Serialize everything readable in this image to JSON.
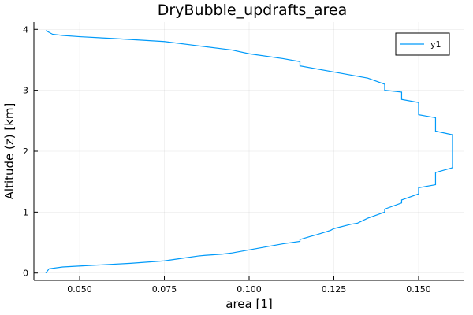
{
  "chart_data": {
    "type": "line",
    "title": "DryBubble_updrafts_area",
    "xlabel": "area [1]",
    "ylabel": "Altitude (z) [km]",
    "xlim": [
      0.0365,
      0.1635
    ],
    "ylim": [
      -0.12,
      4.12
    ],
    "xticks": [
      0.05,
      0.075,
      0.1,
      0.125,
      0.15
    ],
    "xtick_labels": [
      "0.050",
      "0.075",
      "0.100",
      "0.125",
      "0.150"
    ],
    "yticks": [
      0,
      1,
      2,
      3,
      4
    ],
    "ytick_labels": [
      "0",
      "1",
      "2",
      "3",
      "4"
    ],
    "grid": true,
    "legend_position": "top-right",
    "line_color": "#009af9",
    "series": [
      {
        "name": "y1",
        "x": [
          0.04,
          0.041,
          0.045,
          0.055,
          0.065,
          0.075,
          0.08,
          0.085,
          0.087,
          0.092,
          0.095,
          0.1,
          0.105,
          0.11,
          0.115,
          0.115,
          0.118,
          0.12,
          0.124,
          0.125,
          0.13,
          0.132,
          0.135,
          0.136,
          0.14,
          0.14,
          0.145,
          0.145,
          0.15,
          0.15,
          0.155,
          0.155,
          0.16,
          0.16,
          0.155,
          0.155,
          0.15,
          0.15,
          0.145,
          0.145,
          0.14,
          0.14,
          0.135,
          0.13,
          0.125,
          0.115,
          0.115,
          0.11,
          0.1,
          0.095,
          0.085,
          0.075,
          0.06,
          0.05,
          0.045,
          0.042,
          0.041,
          0.04
        ],
        "y": [
          0.0,
          0.07,
          0.1,
          0.13,
          0.16,
          0.2,
          0.24,
          0.28,
          0.29,
          0.31,
          0.33,
          0.38,
          0.43,
          0.48,
          0.52,
          0.55,
          0.6,
          0.63,
          0.7,
          0.73,
          0.8,
          0.82,
          0.9,
          0.92,
          1.0,
          1.05,
          1.15,
          1.2,
          1.3,
          1.4,
          1.45,
          1.65,
          1.73,
          2.27,
          2.33,
          2.55,
          2.6,
          2.8,
          2.85,
          2.97,
          3.0,
          3.1,
          3.2,
          3.25,
          3.3,
          3.4,
          3.47,
          3.52,
          3.6,
          3.66,
          3.73,
          3.8,
          3.85,
          3.88,
          3.9,
          3.92,
          3.95,
          3.98
        ]
      }
    ]
  }
}
